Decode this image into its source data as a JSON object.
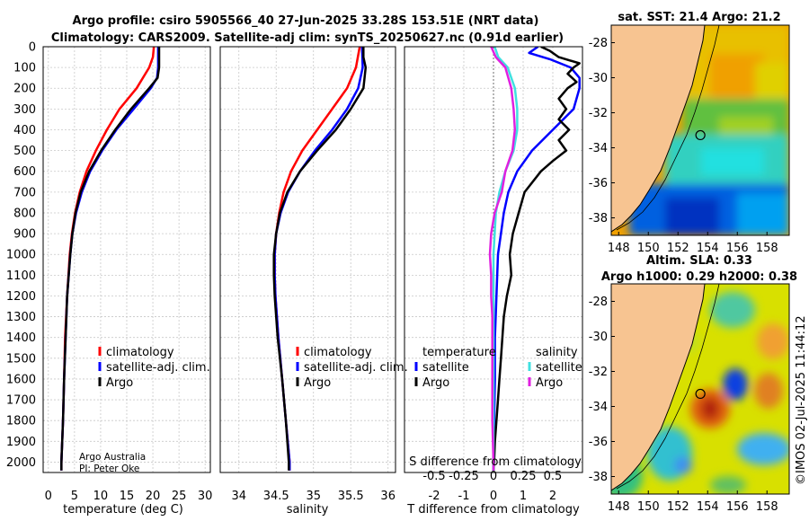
{
  "header": {
    "title_line1": "Argo profile: csiro 5905566_40 27-Jun-2025 33.28S 153.51E (NRT data)",
    "title_line2": "Climatology: CARS2009. Satellite-adj clim: synTS_20250627.nc (0.91d earlier)"
  },
  "credits": {
    "line1": "Argo Australia",
    "line2": "PI: Peter Oke"
  },
  "watermark": "©IMOS 02-Jul-2025 11:44:12",
  "chart_data": [
    {
      "id": "temperature",
      "type": "line",
      "xlabel": "temperature (deg C)",
      "xlim": [
        -1,
        31
      ],
      "xticks": [
        0,
        5,
        10,
        15,
        20,
        25,
        30
      ],
      "ylim": [
        0,
        2050
      ],
      "yticks": [
        0,
        100,
        200,
        300,
        400,
        500,
        600,
        700,
        800,
        900,
        1000,
        1100,
        1200,
        1300,
        1400,
        1500,
        1600,
        1700,
        1800,
        1900,
        2000
      ],
      "legend": [
        "climatology",
        "satellite-adj. clim.",
        "Argo"
      ],
      "series": [
        {
          "name": "climatology",
          "color": "#ff0000",
          "depth": [
            0,
            50,
            100,
            200,
            300,
            400,
            500,
            600,
            700,
            800,
            900,
            1000,
            1200,
            1400,
            1600,
            1800,
            2000,
            2040
          ],
          "values": [
            20.2,
            20.0,
            19.3,
            16.9,
            13.6,
            11.2,
            9.1,
            7.3,
            6.0,
            5.1,
            4.5,
            4.1,
            3.6,
            3.2,
            3.0,
            2.8,
            2.5,
            2.5
          ]
        },
        {
          "name": "satellite-adj. clim.",
          "color": "#0000ff",
          "depth": [
            0,
            50,
            100,
            150,
            200,
            300,
            400,
            500,
            600,
            700,
            800,
            900,
            1000,
            1200,
            1400,
            1600,
            1800,
            2000,
            2040
          ],
          "values": [
            21.0,
            21.0,
            21.0,
            20.8,
            19.6,
            16.3,
            13.0,
            10.3,
            8.0,
            6.4,
            5.3,
            4.6,
            4.2,
            3.6,
            3.3,
            3.0,
            2.8,
            2.5,
            2.5
          ]
        },
        {
          "name": "Argo",
          "color": "#000000",
          "depth": [
            0,
            50,
            100,
            150,
            200,
            300,
            400,
            500,
            600,
            700,
            800,
            900,
            1000,
            1200,
            1400,
            1600,
            1800,
            2000,
            2040
          ],
          "values": [
            21.2,
            21.2,
            21.2,
            20.9,
            19.3,
            15.8,
            12.8,
            10.1,
            7.8,
            6.2,
            5.2,
            4.6,
            4.2,
            3.6,
            3.3,
            3.0,
            2.8,
            2.5,
            2.5
          ]
        }
      ]
    },
    {
      "id": "salinity",
      "type": "line",
      "xlabel": "salinity",
      "xlim": [
        33.75,
        36.1
      ],
      "xticks": [
        34,
        34.5,
        35,
        35.5,
        36
      ],
      "ylim": [
        0,
        2050
      ],
      "legend": [
        "climatology",
        "satellite-adj. clim.",
        "Argo"
      ],
      "series": [
        {
          "name": "climatology",
          "color": "#ff0000",
          "depth": [
            0,
            100,
            200,
            300,
            400,
            500,
            600,
            700,
            800,
            900,
            1000,
            1100,
            1200,
            1400,
            1600,
            1800,
            2000,
            2040
          ],
          "values": [
            35.62,
            35.57,
            35.45,
            35.25,
            35.05,
            34.85,
            34.7,
            34.6,
            34.54,
            34.5,
            34.48,
            34.48,
            34.49,
            34.53,
            34.58,
            34.63,
            34.68,
            34.68
          ]
        },
        {
          "name": "satellite-adj. clim.",
          "color": "#0000ff",
          "depth": [
            0,
            100,
            200,
            300,
            400,
            500,
            600,
            700,
            800,
            900,
            1000,
            1100,
            1200,
            1400,
            1600,
            1800,
            2000,
            2040
          ],
          "values": [
            35.65,
            35.66,
            35.6,
            35.45,
            35.25,
            35.02,
            34.82,
            34.66,
            34.56,
            34.5,
            34.48,
            34.48,
            34.49,
            34.53,
            34.58,
            34.63,
            34.68,
            34.68
          ]
        },
        {
          "name": "Argo",
          "color": "#000000",
          "depth": [
            0,
            50,
            100,
            200,
            300,
            400,
            500,
            600,
            700,
            800,
            900,
            1000,
            1100,
            1200,
            1400,
            1600,
            1800,
            2000,
            2040
          ],
          "values": [
            35.67,
            35.67,
            35.7,
            35.67,
            35.5,
            35.3,
            35.05,
            34.82,
            34.65,
            34.55,
            34.5,
            34.47,
            34.47,
            34.48,
            34.52,
            34.58,
            34.63,
            34.67,
            34.67
          ]
        }
      ]
    },
    {
      "id": "difference",
      "type": "line",
      "xlabel": "T difference from climatology",
      "xlabel_top": "S difference from climatology",
      "xlim": [
        -3,
        3
      ],
      "xticks": [
        -2,
        -1,
        0,
        1,
        2
      ],
      "sticks_labels": [
        "-0.5",
        "-0.25",
        "0",
        "0.25",
        "0.5"
      ],
      "ylim": [
        0,
        2050
      ],
      "legend_temperature_title": "temperature",
      "legend_salinity_title": "salinity",
      "legend_temperature": [
        "satellite",
        "Argo"
      ],
      "legend_salinity": [
        "satellite",
        "Argo"
      ],
      "series": [
        {
          "name": "T satellite",
          "color": "#0000ff",
          "depth": [
            0,
            30,
            60,
            100,
            150,
            200,
            300,
            400,
            500,
            600,
            700,
            800,
            900,
            1000,
            1200,
            1400,
            1600,
            1800,
            2000,
            2040
          ],
          "values": [
            1.5,
            1.2,
            1.9,
            2.6,
            2.9,
            2.9,
            2.7,
            2.0,
            1.3,
            0.8,
            0.5,
            0.35,
            0.25,
            0.15,
            0.1,
            0.05,
            0.05,
            0.02,
            0.0,
            0.0
          ]
        },
        {
          "name": "T Argo",
          "color": "#000000",
          "depth": [
            0,
            20,
            50,
            80,
            100,
            130,
            170,
            200,
            250,
            300,
            350,
            400,
            450,
            500,
            550,
            600,
            700,
            800,
            900,
            1000,
            1100,
            1200,
            1300,
            1400,
            1500,
            1600,
            1700,
            1800,
            1900,
            2000,
            2040
          ],
          "values": [
            1.6,
            1.9,
            2.2,
            2.9,
            2.7,
            2.5,
            2.8,
            2.5,
            2.2,
            2.45,
            2.2,
            2.55,
            2.2,
            2.45,
            2.0,
            1.6,
            1.05,
            0.85,
            0.65,
            0.55,
            0.6,
            0.45,
            0.35,
            0.3,
            0.25,
            0.2,
            0.15,
            0.1,
            0.05,
            0.02,
            0.0
          ]
        },
        {
          "name": "S satellite",
          "color": "#40e0e0",
          "depth": [
            0,
            50,
            100,
            200,
            300,
            400,
            500,
            600,
            700,
            800,
            900,
            1000,
            1200,
            1400,
            1600,
            1800,
            2000,
            2040
          ],
          "values": [
            0.01,
            0.04,
            0.12,
            0.18,
            0.2,
            0.2,
            0.17,
            0.1,
            0.05,
            0.02,
            0.01,
            0.0,
            0.0,
            0.0,
            0.0,
            0.0,
            0.0,
            0.0
          ]
        },
        {
          "name": "S Argo",
          "color": "#e020e0",
          "depth": [
            0,
            50,
            100,
            200,
            300,
            400,
            500,
            600,
            700,
            800,
            900,
            1000,
            1100,
            1200,
            1300,
            1400,
            1600,
            1800,
            2000,
            2040
          ],
          "values": [
            -0.02,
            0.02,
            0.1,
            0.15,
            0.17,
            0.18,
            0.16,
            0.1,
            0.07,
            0.01,
            -0.02,
            -0.03,
            -0.02,
            -0.02,
            -0.01,
            -0.01,
            -0.01,
            -0.01,
            0.0,
            0.0
          ]
        }
      ]
    },
    {
      "id": "sst_map",
      "type": "heatmap",
      "title": "sat. SST: 21.4 Argo: 21.2",
      "xlim": [
        147.5,
        159.5
      ],
      "ylim": [
        -39,
        -27
      ],
      "xticks": [
        148,
        150,
        152,
        154,
        156,
        158
      ],
      "yticks": [
        -28,
        -30,
        -32,
        -34,
        -36,
        -38
      ],
      "marker": {
        "lon": 153.51,
        "lat": -33.28
      }
    },
    {
      "id": "sla_map",
      "type": "heatmap",
      "title_line1": "Altim. SLA: 0.33",
      "title_line2": "Argo h1000: 0.29 h2000: 0.38",
      "xlim": [
        147.5,
        159.5
      ],
      "ylim": [
        -39,
        -27
      ],
      "xticks": [
        148,
        150,
        152,
        154,
        156,
        158
      ],
      "yticks": [
        -28,
        -30,
        -32,
        -34,
        -36,
        -38
      ],
      "marker": {
        "lon": 153.51,
        "lat": -33.28
      }
    }
  ]
}
